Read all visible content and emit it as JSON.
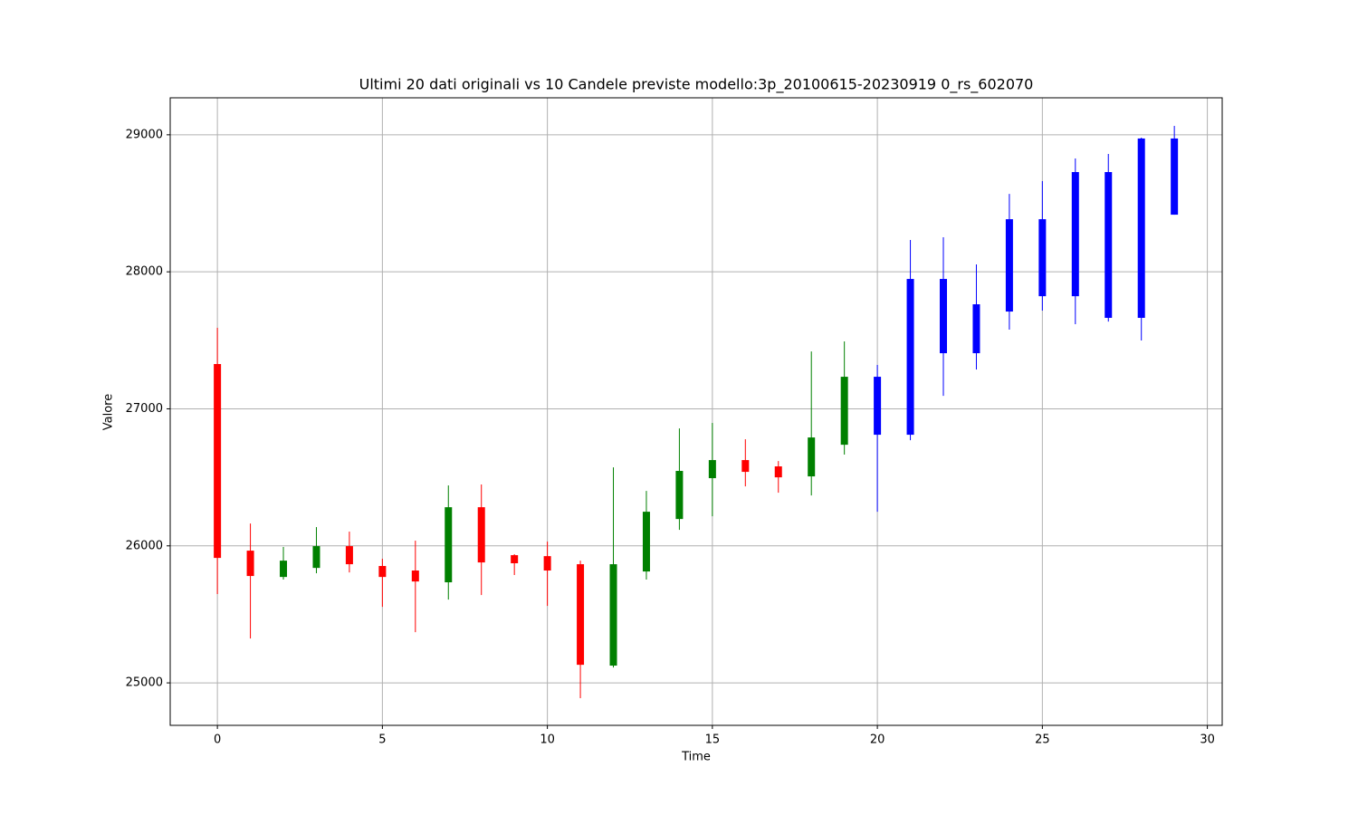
{
  "chart_data": {
    "type": "candlestick",
    "title": "Ultimi 20 dati originali vs 10 Candele previste modello:3p_20100615-20230919 0_rs_602070",
    "x_label": "Time",
    "y_label": "Valore",
    "x": [
      0,
      1,
      2,
      3,
      4,
      5,
      6,
      7,
      8,
      9,
      10,
      11,
      12,
      13,
      14,
      15,
      16,
      17,
      18,
      19,
      20,
      21,
      22,
      23,
      24,
      25,
      26,
      27,
      28,
      29
    ],
    "open": [
      27327,
      25965,
      25773,
      25839,
      25998,
      25853,
      25820,
      25734,
      26282,
      25932,
      25925,
      25866,
      25126,
      25813,
      26196,
      26494,
      26626,
      26580,
      26507,
      26738,
      26811,
      26811,
      27406,
      27406,
      27710,
      27822,
      27822,
      27664,
      27664,
      28417
    ],
    "high": [
      27591,
      26163,
      25992,
      26137,
      26104,
      25906,
      26038,
      26441,
      26448,
      25939,
      26031,
      25892,
      26573,
      26401,
      26857,
      26897,
      26778,
      26619,
      27419,
      27492,
      27320,
      28232,
      28252,
      28054,
      28569,
      28662,
      28827,
      28860,
      28979,
      29065
    ],
    "low": [
      25648,
      25324,
      25754,
      25800,
      25806,
      25555,
      25370,
      25608,
      25641,
      25787,
      25562,
      24888,
      25112,
      25754,
      26117,
      26216,
      26434,
      26388,
      26368,
      26666,
      26249,
      26771,
      27095,
      27287,
      27578,
      27717,
      27618,
      27637,
      27499,
      28417
    ],
    "close": [
      25912,
      25780,
      25892,
      25998,
      25866,
      25773,
      25740,
      26282,
      25879,
      25873,
      25820,
      25132,
      25866,
      26249,
      26547,
      26626,
      26540,
      26500,
      26791,
      27234,
      27234,
      27948,
      27948,
      27763,
      28384,
      28384,
      28728,
      28728,
      28973,
      28973
    ],
    "colors": [
      "red",
      "red",
      "green",
      "green",
      "red",
      "red",
      "red",
      "green",
      "red",
      "red",
      "red",
      "red",
      "green",
      "green",
      "green",
      "green",
      "red",
      "red",
      "green",
      "green",
      "blue",
      "blue",
      "blue",
      "blue",
      "blue",
      "blue",
      "blue",
      "blue",
      "blue",
      "blue"
    ],
    "xlim": [
      -1.43,
      30.45
    ],
    "ylim": [
      24690,
      29270
    ],
    "xticks": [
      0,
      5,
      10,
      15,
      20,
      25,
      30
    ],
    "yticks": [
      25000,
      26000,
      27000,
      28000,
      29000
    ],
    "grid": true
  }
}
